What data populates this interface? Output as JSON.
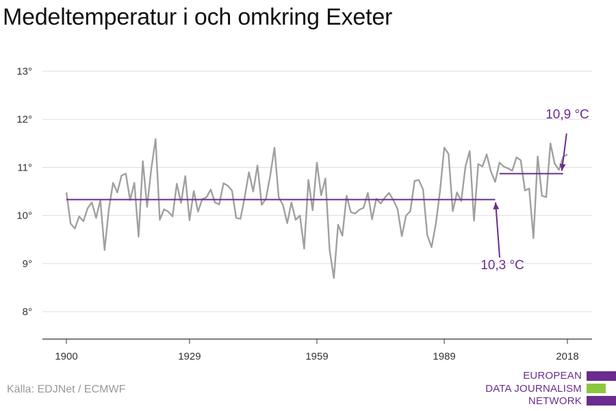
{
  "title": "Medeltemperatur i och omkring Exeter",
  "source": "Källa: EDJNet / ECMWF",
  "logo": {
    "lines": [
      "EUROPEAN",
      "DATA JOURNALISM",
      "NETWORK"
    ],
    "colors": {
      "purple": "#6a2c8e",
      "green": "#8dc63f"
    }
  },
  "colors": {
    "series": "#a0a0a0",
    "average": "#6a2c8e",
    "annotation": "#6a2c8e",
    "grid": "#dddddd",
    "axis": "#333333"
  },
  "chart_data": {
    "type": "line",
    "title": "Medeltemperatur i och omkring Exeter",
    "xlabel": "",
    "ylabel": "",
    "xlim": [
      1900,
      2019
    ],
    "ylim": [
      7.4,
      13.2
    ],
    "x_ticks": [
      1900,
      1929,
      1959,
      1989,
      2018
    ],
    "y_ticks": [
      8,
      9,
      10,
      11,
      12,
      13
    ],
    "y_tick_labels": [
      "8°",
      "9°",
      "10°",
      "11°",
      "12°",
      "13°"
    ],
    "grid": true,
    "series": [
      {
        "x": [
          1900,
          1901,
          1902,
          1903,
          1904,
          1905,
          1906,
          1907,
          1908,
          1909,
          1910,
          1911,
          1912,
          1913,
          1914,
          1915,
          1916,
          1917,
          1918,
          1919,
          1920,
          1921,
          1922,
          1923,
          1924,
          1925,
          1926,
          1927,
          1928,
          1929,
          1930,
          1931,
          1932,
          1933,
          1934,
          1935,
          1936,
          1937,
          1938,
          1939,
          1940,
          1941,
          1942,
          1943,
          1944,
          1945,
          1946,
          1947,
          1948,
          1949,
          1950,
          1951,
          1952,
          1953,
          1954,
          1955,
          1956,
          1957,
          1958,
          1959,
          1960,
          1961,
          1962,
          1963,
          1964,
          1965,
          1966,
          1967,
          1968,
          1969,
          1970,
          1971,
          1972,
          1973,
          1974,
          1975,
          1976,
          1977,
          1978,
          1979,
          1980,
          1981,
          1982,
          1983,
          1984,
          1985,
          1986,
          1987,
          1988,
          1989,
          1990,
          1991,
          1992,
          1993,
          1994,
          1995,
          1996,
          1997,
          1998,
          1999,
          2000,
          2001,
          2002,
          2003,
          2004,
          2005,
          2006,
          2007,
          2008,
          2009,
          2010,
          2011,
          2012,
          2013,
          2014,
          2015,
          2016,
          2017,
          2018
        ],
        "values": [
          10.48,
          9.83,
          9.73,
          9.98,
          9.88,
          10.15,
          10.27,
          9.95,
          10.32,
          9.28,
          10.13,
          10.68,
          10.48,
          10.83,
          10.87,
          10.32,
          10.68,
          9.56,
          11.13,
          10.18,
          10.98,
          11.59,
          9.91,
          10.13,
          10.08,
          9.98,
          10.66,
          10.26,
          10.82,
          9.9,
          10.51,
          10.08,
          10.34,
          10.38,
          10.54,
          10.27,
          10.23,
          10.67,
          10.62,
          10.52,
          9.95,
          9.93,
          10.38,
          10.9,
          10.5,
          11.04,
          10.22,
          10.35,
          10.83,
          11.41,
          10.38,
          10.22,
          9.84,
          10.27,
          9.91,
          10.0,
          9.31,
          10.74,
          10.11,
          11.1,
          10.42,
          10.77,
          9.28,
          8.7,
          9.81,
          9.58,
          10.41,
          10.07,
          10.04,
          10.12,
          10.16,
          10.47,
          9.92,
          10.35,
          10.25,
          10.37,
          10.47,
          10.32,
          10.13,
          9.57,
          10.0,
          10.09,
          10.72,
          10.74,
          10.54,
          9.59,
          9.34,
          9.82,
          10.51,
          11.41,
          11.28,
          10.09,
          10.48,
          10.3,
          11.02,
          11.34,
          9.89,
          11.07,
          11.02,
          11.27,
          10.91,
          10.7,
          11.1,
          11.02,
          10.98,
          10.93,
          11.21,
          11.15,
          10.52,
          10.56,
          9.53,
          11.23,
          10.41,
          10.38,
          11.5,
          11.08,
          10.95,
          11.22,
          11.27
        ]
      }
    ],
    "averages": [
      {
        "from": 1900,
        "to": 2001,
        "value": 10.33,
        "label": "10,3 °C"
      },
      {
        "from": 2002,
        "to": 2017,
        "value": 10.87,
        "label": "10,9 °C"
      }
    ]
  }
}
